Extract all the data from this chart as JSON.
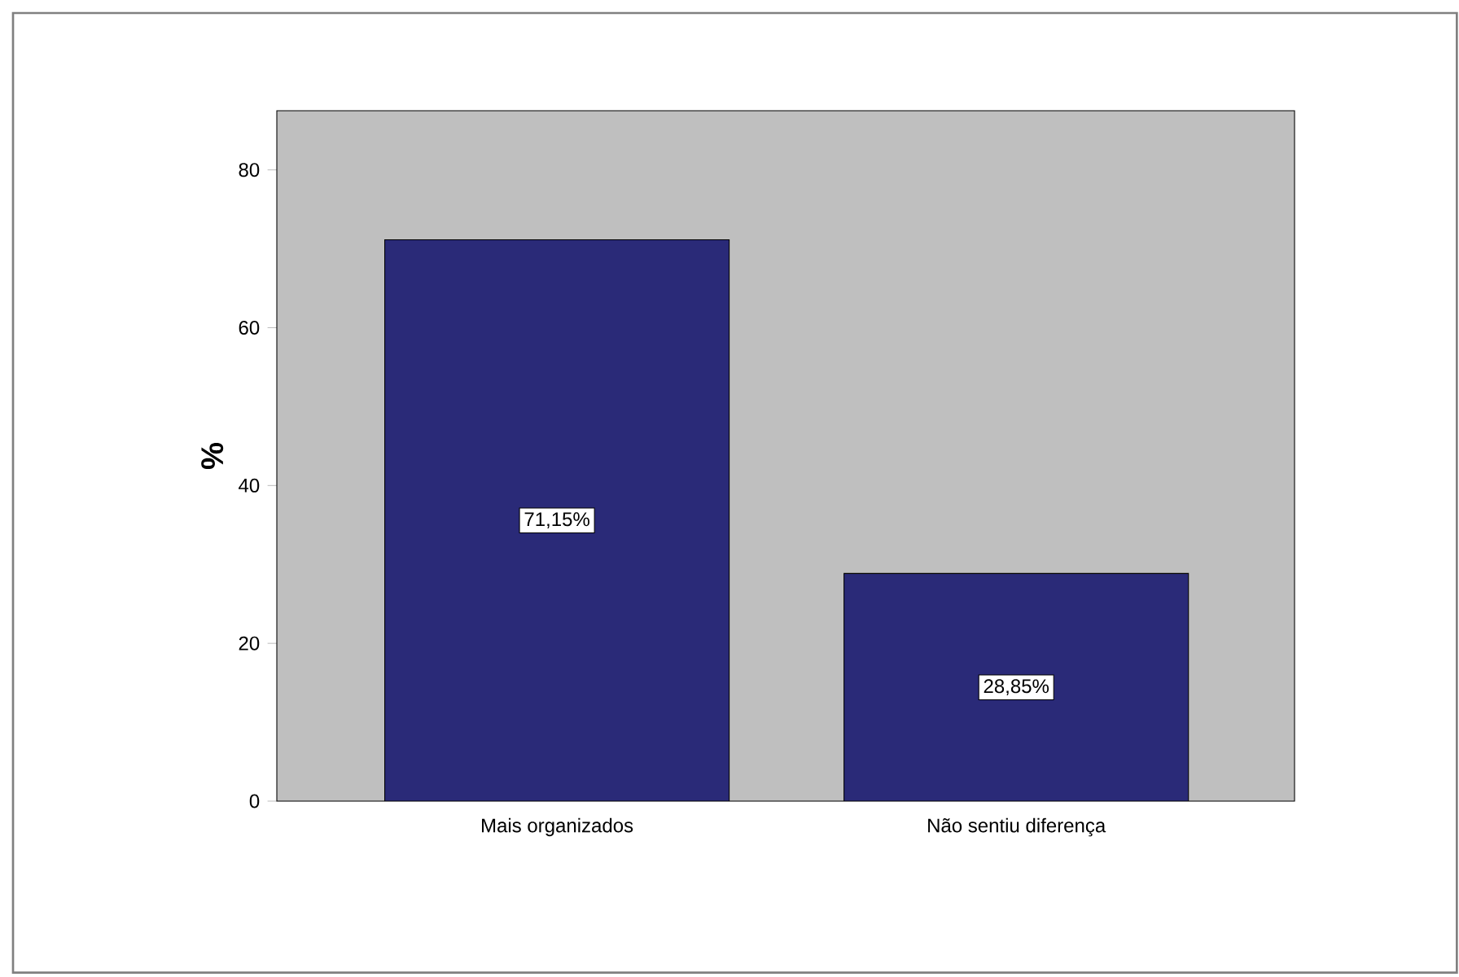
{
  "chart_data": {
    "type": "bar",
    "ylabel": "%",
    "categories": [
      "Mais organizados",
      "Não sentiu diferença"
    ],
    "values": [
      71.15,
      28.85
    ],
    "value_labels": [
      "71,15%",
      "28,85%"
    ],
    "color": "#2a2a78",
    "ylim": [
      0,
      87.5
    ],
    "yticks": [
      0,
      20,
      40,
      60,
      80
    ],
    "grid": false
  }
}
